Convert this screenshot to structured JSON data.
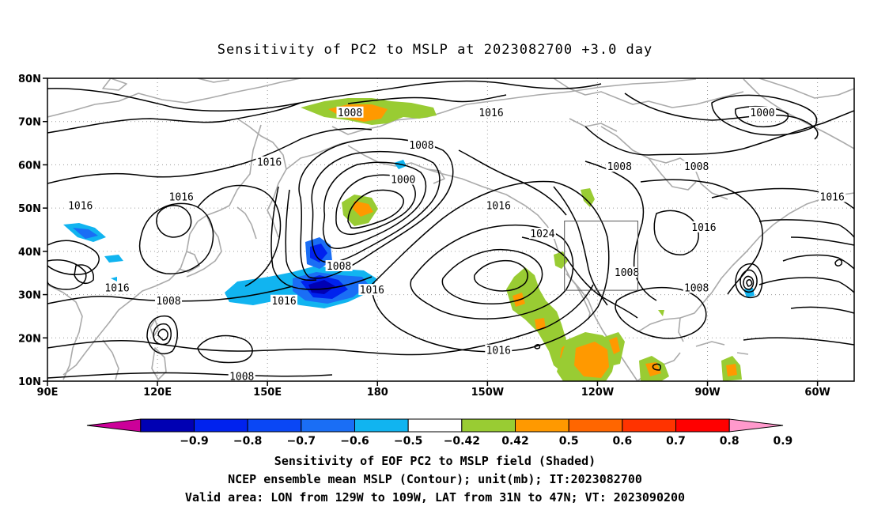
{
  "title": "Sensitivity of PC2 to MSLP at 2023082700 +3.0 day",
  "map": {
    "lon_range": [
      90,
      310
    ],
    "lat_range": [
      10,
      80
    ],
    "lat_ticks": [
      {
        "lat": 80,
        "label": "80N"
      },
      {
        "lat": 70,
        "label": "70N"
      },
      {
        "lat": 60,
        "label": "60N"
      },
      {
        "lat": 50,
        "label": "50N"
      },
      {
        "lat": 40,
        "label": "40N"
      },
      {
        "lat": 30,
        "label": "30N"
      },
      {
        "lat": 20,
        "label": "20N"
      },
      {
        "lat": 10,
        "label": "10N"
      }
    ],
    "lon_ticks": [
      {
        "lon": 90,
        "label": "90E"
      },
      {
        "lon": 120,
        "label": "120E"
      },
      {
        "lon": 150,
        "label": "150E"
      },
      {
        "lon": 180,
        "label": "180"
      },
      {
        "lon": 210,
        "label": "150W"
      },
      {
        "lon": 240,
        "label": "120W"
      },
      {
        "lon": 270,
        "label": "90W"
      },
      {
        "lon": 300,
        "label": "60W"
      }
    ],
    "grid": "dotted",
    "valid_box": {
      "lon_min": 231,
      "lon_max": 251,
      "lat_min": 31,
      "lat_max": 47
    },
    "contour_labels": [
      {
        "text": "1008",
        "lon": 172.5,
        "lat": 72
      },
      {
        "text": "1016",
        "lon": 211,
        "lat": 72
      },
      {
        "text": "1000",
        "lon": 285,
        "lat": 72
      },
      {
        "text": "1008",
        "lon": 192,
        "lat": 64.5
      },
      {
        "text": "1016",
        "lon": 150.5,
        "lat": 60.5
      },
      {
        "text": "1000",
        "lon": 187,
        "lat": 56.5
      },
      {
        "text": "1008",
        "lon": 246,
        "lat": 59.5
      },
      {
        "text": "1008",
        "lon": 267,
        "lat": 59.5
      },
      {
        "text": "1016",
        "lon": 126.5,
        "lat": 52.5
      },
      {
        "text": "1016",
        "lon": 99,
        "lat": 50.5
      },
      {
        "text": "1016",
        "lon": 213,
        "lat": 50.5
      },
      {
        "text": "1016",
        "lon": 304,
        "lat": 52.5
      },
      {
        "text": "1016",
        "lon": 269,
        "lat": 45.5
      },
      {
        "text": "1024",
        "lon": 225,
        "lat": 44
      },
      {
        "text": "1008",
        "lon": 169.5,
        "lat": 36.5
      },
      {
        "text": "1008",
        "lon": 248,
        "lat": 35
      },
      {
        "text": "1016",
        "lon": 109,
        "lat": 31.5
      },
      {
        "text": "1008",
        "lon": 267,
        "lat": 31.5
      },
      {
        "text": "1016",
        "lon": 178.5,
        "lat": 31
      },
      {
        "text": "1016",
        "lon": 154.5,
        "lat": 28.5
      },
      {
        "text": "1008",
        "lon": 123,
        "lat": 28.5
      },
      {
        "text": "1016",
        "lon": 213,
        "lat": 17
      },
      {
        "text": "1008",
        "lon": 143,
        "lat": 11
      }
    ]
  },
  "colorbar": {
    "segments": [
      {
        "color": "#cc0099"
      },
      {
        "color": "#0000b3"
      },
      {
        "color": "#0022ee"
      },
      {
        "color": "#0a47f5"
      },
      {
        "color": "#1a6ef5"
      },
      {
        "color": "#11b4f0"
      },
      {
        "color": "#ffffff"
      },
      {
        "color": "#99cc33"
      },
      {
        "color": "#ff9900"
      },
      {
        "color": "#ff6600"
      },
      {
        "color": "#ff3300"
      },
      {
        "color": "#ff0000"
      },
      {
        "color": "#ff99cc"
      }
    ],
    "labels": [
      "−0.9",
      "−0.8",
      "−0.7",
      "−0.6",
      "−0.5",
      "−0.42",
      "0.42",
      "0.5",
      "0.6",
      "0.7",
      "0.8",
      "0.9"
    ]
  },
  "footer": {
    "line1": "Sensitivity of EOF PC2 to MSLP field (Shaded)",
    "line2": "NCEP ensemble mean MSLP (Contour); unit(mb); IT:2023082700",
    "line3": "Valid area: LON from 129W to 109W, LAT from 31N to 47N; VT: 2023090200"
  }
}
